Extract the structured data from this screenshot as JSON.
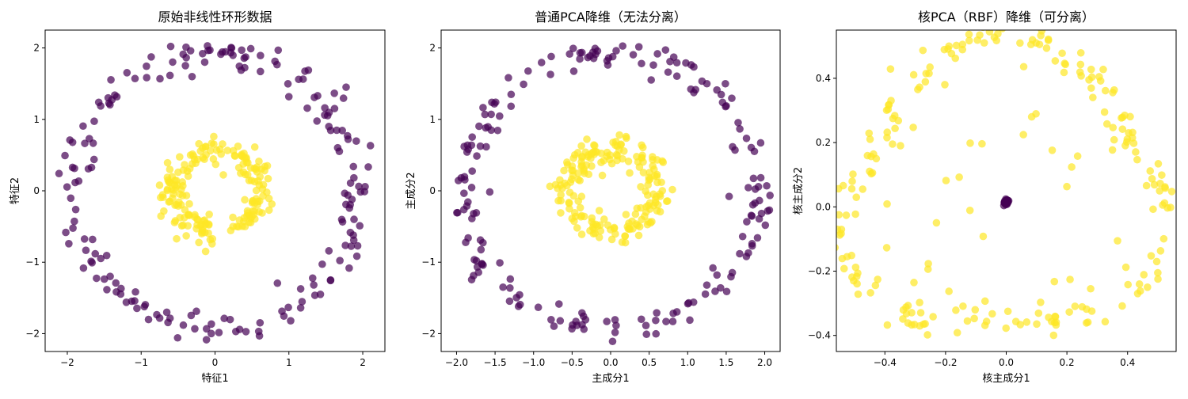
{
  "colors": {
    "outer": "#440154",
    "inner": "#fde725",
    "point_opacity": 0.7
  },
  "chart_data": [
    {
      "type": "scatter",
      "title": "原始非线性环形数据",
      "xlabel": "特征1",
      "ylabel": "特征2",
      "xlim": [
        -2.3,
        2.3
      ],
      "ylim": [
        -2.25,
        2.25
      ],
      "xticks": [
        -2,
        -1,
        0,
        1,
        2
      ],
      "yticks": [
        -2,
        -1,
        0,
        1,
        2
      ],
      "xtick_labels": [
        "−2",
        "−1",
        "0",
        "1",
        "2"
      ],
      "ytick_labels": [
        "−2",
        "−1",
        "0",
        "1",
        "2"
      ],
      "series": [
        {
          "kind": "ring",
          "color_key": "outer",
          "count": 190,
          "rx": 1.93,
          "ry": 1.93,
          "jitter": 0.11,
          "cx": 0,
          "cy": 0
        },
        {
          "kind": "ring",
          "color_key": "inner",
          "count": 190,
          "rx": 0.58,
          "ry": 0.58,
          "jitter": 0.1,
          "cx": 0,
          "cy": 0
        }
      ]
    },
    {
      "type": "scatter",
      "title": "普通PCA降维（无法分离）",
      "xlabel": "主成分1",
      "ylabel": "主成分2",
      "xlim": [
        -2.2,
        2.2
      ],
      "ylim": [
        -2.25,
        2.25
      ],
      "xticks": [
        -2.0,
        -1.5,
        -1.0,
        -0.5,
        0.0,
        0.5,
        1.0,
        1.5,
        2.0
      ],
      "yticks": [
        -2,
        -1,
        0,
        1,
        2
      ],
      "xtick_labels": [
        "−2.0",
        "−1.5",
        "−1.0",
        "−0.5",
        "0.0",
        "0.5",
        "1.0",
        "1.5",
        "2.0"
      ],
      "ytick_labels": [
        "−2",
        "−1",
        "0",
        "1",
        "2"
      ],
      "series": [
        {
          "kind": "ring",
          "color_key": "outer",
          "count": 190,
          "rx": 1.93,
          "ry": 1.93,
          "jitter": 0.11,
          "cx": 0,
          "cy": 0
        },
        {
          "kind": "ring",
          "color_key": "inner",
          "count": 190,
          "rx": 0.58,
          "ry": 0.58,
          "jitter": 0.1,
          "cx": 0,
          "cy": 0
        }
      ]
    },
    {
      "type": "scatter",
      "title": "核PCA（RBF）降维（可分离）",
      "xlabel": "核主成分1",
      "ylabel": "核主成分2",
      "xlim": [
        -0.56,
        0.56
      ],
      "ylim": [
        -0.45,
        0.55
      ],
      "xticks": [
        -0.4,
        -0.2,
        0.0,
        0.2,
        0.4
      ],
      "yticks": [
        -0.4,
        -0.2,
        0.0,
        0.2,
        0.4
      ],
      "xtick_labels": [
        "−0.4",
        "−0.2",
        "0.0",
        "0.2",
        "0.4"
      ],
      "ytick_labels": [
        "−0.4",
        "−0.2",
        "0.0",
        "0.2",
        "0.4"
      ],
      "series": [
        {
          "kind": "triangle",
          "color_key": "inner",
          "count": 240,
          "scale": 0.5,
          "jitter": 0.03
        },
        {
          "kind": "cluster",
          "color_key": "outer",
          "count": 40,
          "x": 0.0,
          "y": 0.015,
          "jitter": 0.004
        }
      ]
    }
  ]
}
